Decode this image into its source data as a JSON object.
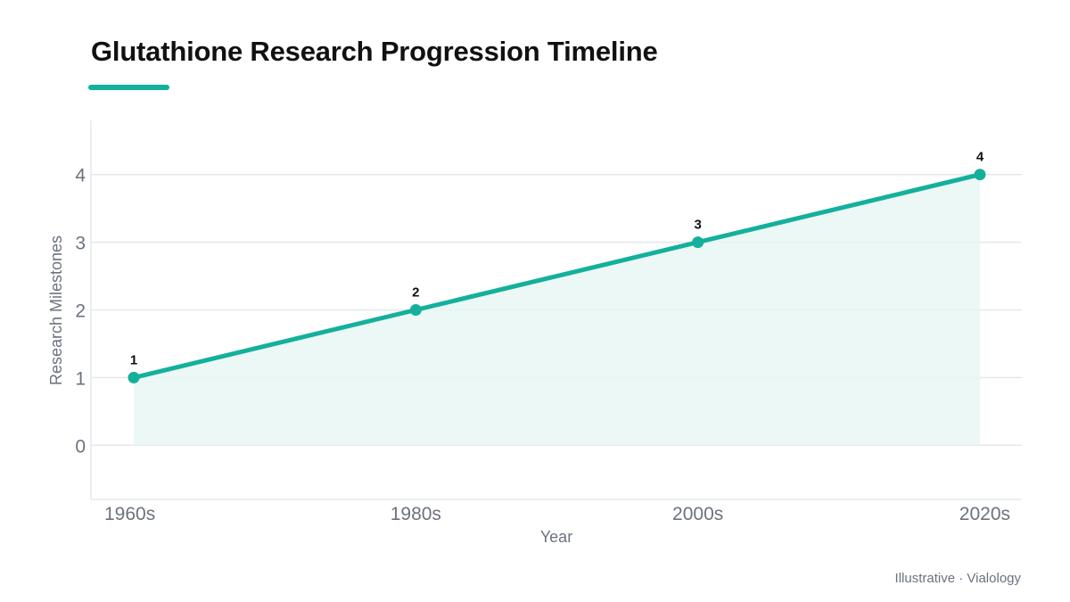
{
  "chart_data": {
    "type": "area",
    "title": "Glutathione Research Progression Timeline",
    "xlabel": "Year",
    "ylabel": "Research Milestones",
    "categories": [
      "1960s",
      "1980s",
      "2000s",
      "2020s"
    ],
    "values": [
      1,
      2,
      3,
      4
    ],
    "data_labels": [
      "1",
      "2",
      "3",
      "4"
    ],
    "yticks": [
      "0",
      "1",
      "2",
      "3",
      "4"
    ],
    "ylim": [
      -0.8,
      4.8
    ],
    "grid": true,
    "legend": "none",
    "colors": {
      "line": "#14b09c",
      "fill": "#e8f7f3",
      "grid": "#e5e7eb",
      "axis": "#e5e7eb"
    }
  },
  "footer": {
    "source": "Illustrative · Vialology"
  }
}
